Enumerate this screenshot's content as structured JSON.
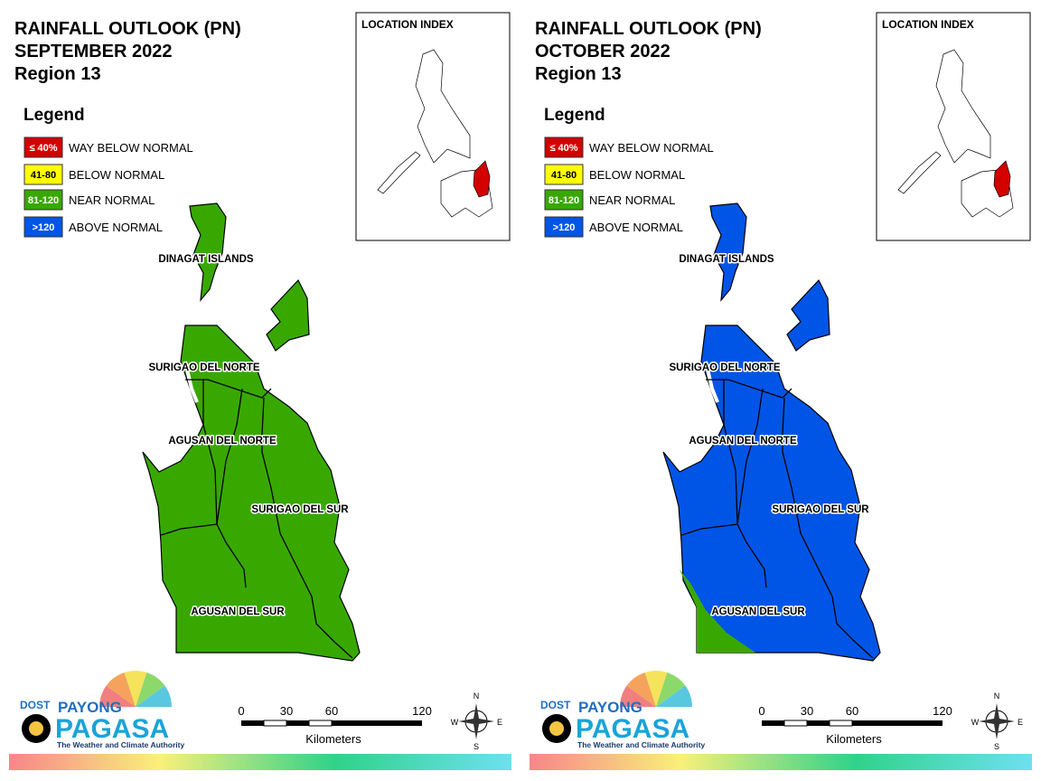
{
  "panels": [
    {
      "title_lines": [
        "RAINFALL OUTLOOK (PN)",
        "SEPTEMBER 2022",
        "Region 13"
      ],
      "legend": {
        "title": "Legend",
        "items": [
          {
            "range": "≤ 40%",
            "label": "WAY BELOW NORMAL",
            "color": "#d40000"
          },
          {
            "range": "41-80",
            "label": "BELOW NORMAL",
            "color": "#ffff00"
          },
          {
            "range": "81-120",
            "label": "NEAR NORMAL",
            "color": "#38a800"
          },
          {
            "range": ">120",
            "label": "ABOVE NORMAL",
            "color": "#0055e6"
          }
        ]
      },
      "location_index": "LOCATION INDEX",
      "provinces": [
        "DINAGAT ISLANDS",
        "SURIGAO DEL NORTE",
        "AGUSAN DEL NORTE",
        "SURIGAO DEL SUR",
        "AGUSAN DEL SUR"
      ],
      "scale": {
        "ticks": [
          0,
          30,
          60,
          120
        ],
        "unit": "Kilometers"
      },
      "compass": {
        "n": "N",
        "e": "E",
        "s": "S",
        "w": "W"
      },
      "logo": {
        "dost": "DOST",
        "payong": "PAYONG",
        "pagasa": "PAGASA",
        "tagline": "The Weather and Climate Authority"
      }
    },
    {
      "title_lines": [
        "RAINFALL OUTLOOK (PN)",
        "OCTOBER 2022",
        "Region 13"
      ],
      "legend": {
        "title": "Legend",
        "items": [
          {
            "range": "≤ 40%",
            "label": "WAY BELOW NORMAL",
            "color": "#d40000"
          },
          {
            "range": "41-80",
            "label": "BELOW NORMAL",
            "color": "#ffff00"
          },
          {
            "range": "81-120",
            "label": "NEAR NORMAL",
            "color": "#38a800"
          },
          {
            "range": ">120",
            "label": "ABOVE NORMAL",
            "color": "#0055e6"
          }
        ]
      },
      "location_index": "LOCATION INDEX",
      "provinces": [
        "DINAGAT ISLANDS",
        "SURIGAO DEL NORTE",
        "AGUSAN DEL NORTE",
        "SURIGAO DEL SUR",
        "AGUSAN DEL SUR"
      ],
      "scale": {
        "ticks": [
          0,
          30,
          60,
          120
        ],
        "unit": "Kilometers"
      },
      "compass": {
        "n": "N",
        "e": "E",
        "s": "S",
        "w": "W"
      },
      "logo": {
        "dost": "DOST",
        "payong": "PAYONG",
        "pagasa": "PAGASA",
        "tagline": "The Weather and Climate Authority"
      }
    }
  ]
}
